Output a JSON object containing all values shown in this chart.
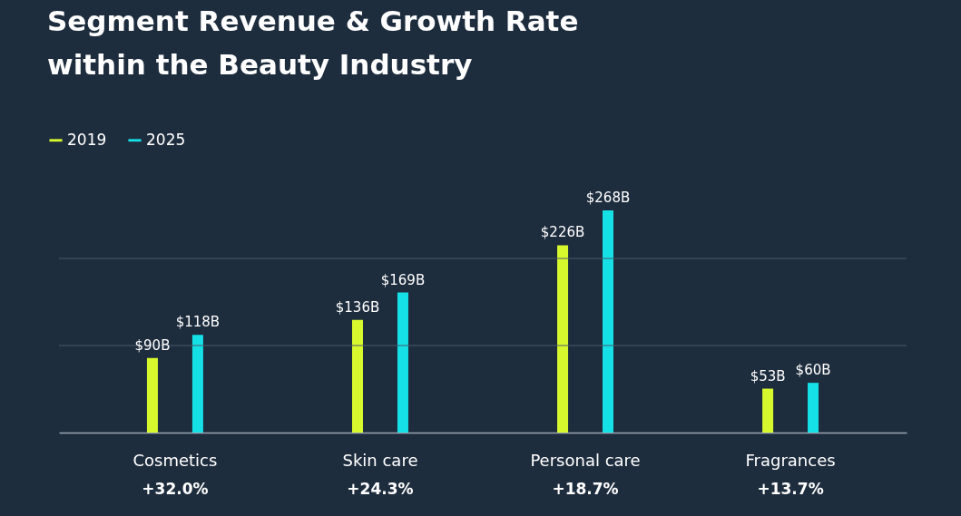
{
  "chart_data": {
    "type": "bar",
    "title": [
      "Segment Revenue & Growth Rate",
      "within the Beauty Industry"
    ],
    "categories": [
      "Cosmetics",
      "Skin care",
      "Personal care",
      "Fragrances"
    ],
    "series": [
      {
        "name": "2019",
        "color": "#d8f82e",
        "values": [
          90,
          136,
          226,
          53
        ],
        "value_labels": [
          "$90B",
          "$136B",
          "$226B",
          "$53B"
        ]
      },
      {
        "name": "2025",
        "color": "#14e0e6",
        "values": [
          118,
          169,
          268,
          60
        ],
        "value_labels": [
          "$118B",
          "$169B",
          "$268B",
          "$60B"
        ]
      }
    ],
    "annotations": [
      "+32.0%",
      "+24.3%",
      "+18.7%",
      "+13.7%"
    ],
    "ref_lines": [
      {
        "axis": "y",
        "value": 105,
        "color": "#4b5a6a"
      },
      {
        "axis": "y",
        "value": 210,
        "color": "#4b5a6a"
      }
    ],
    "legend": "top left",
    "tick_labels": "x"
  }
}
